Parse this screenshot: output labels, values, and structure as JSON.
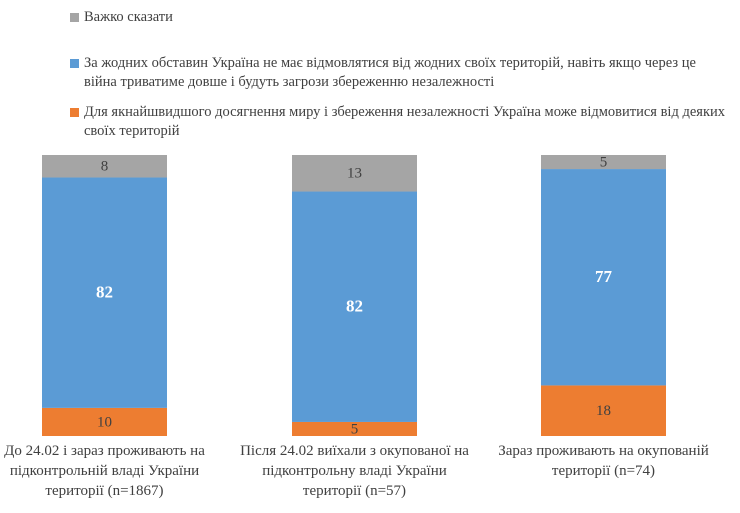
{
  "chart_data": {
    "type": "stacked_bar",
    "categories": [
      "До 24.02 і зараз проживають на підконтрольній владі України території (n=1867)",
      "Після 24.02 виїхали з окупованої на підконтрольну владі України території (n=57)",
      "Зараз проживають на окупованій території (n=74)"
    ],
    "series": [
      {
        "name": "Для якнайшвидшого досягнення миру і збереження незалежності Україна може відмовитися від деяких своїх територій",
        "color": "#ed7d31",
        "values": [
          10,
          5,
          18
        ]
      },
      {
        "name": "За жодних обставин Україна не має відмовлятися від жодних своїх територій, навіть якщо через це війна триватиме довше і будуть загрози збереженню незалежності",
        "color": "#5b9bd5",
        "values": [
          82,
          82,
          77
        ]
      },
      {
        "name": "Важко сказати",
        "color": "#a5a5a5",
        "values": [
          8,
          13,
          5
        ]
      }
    ],
    "ylim": [
      0,
      100
    ]
  }
}
